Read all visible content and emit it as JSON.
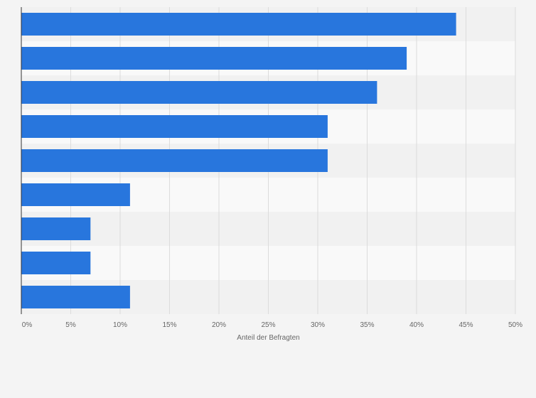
{
  "chart_data": {
    "type": "bar",
    "orientation": "horizontal",
    "title": "",
    "xlabel": "Anteil der Befragten",
    "ylabel": "",
    "categories": [
      "",
      "",
      "",
      "",
      "",
      "",
      "",
      "",
      ""
    ],
    "values": [
      44,
      39,
      36,
      31,
      31,
      11,
      7,
      7,
      11
    ],
    "xlim": [
      0,
      50
    ],
    "xticks": [
      0,
      5,
      10,
      15,
      20,
      25,
      30,
      35,
      40,
      45,
      50
    ],
    "tick_format": "{v}%",
    "grid": true,
    "legend": "none",
    "colors": {
      "bar": "#2876dd",
      "band_dark": "#f1f1f1",
      "band_light": "#f9f9f9",
      "grid": "#dcdcdc",
      "axis": "#333333",
      "tick_label": "#666666"
    }
  }
}
